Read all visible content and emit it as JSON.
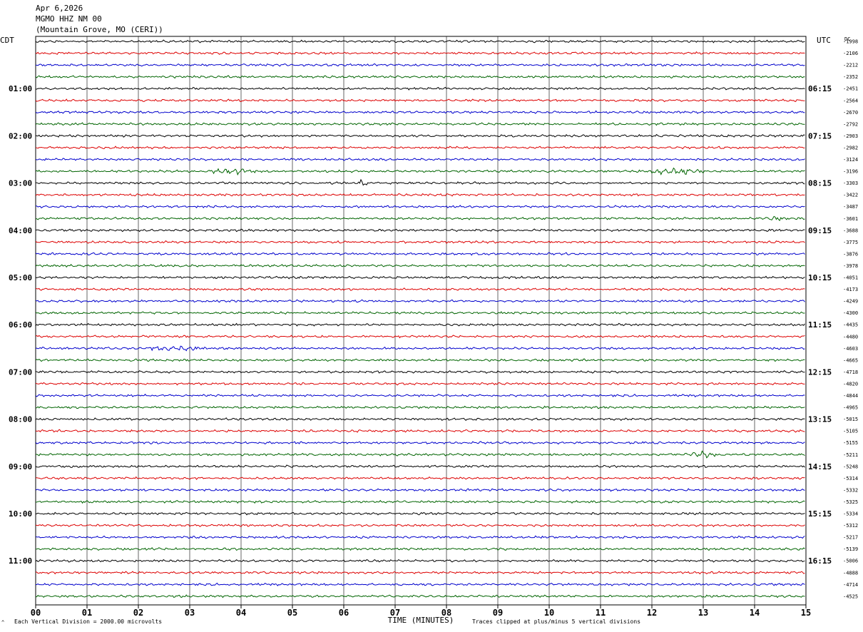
{
  "header": {
    "date": "Apr 6,2026",
    "station": "MGMO HHZ NM 00",
    "location": "(Mountain Grove, MO (CERI))"
  },
  "chart_data": {
    "type": "line",
    "title": "",
    "xlabel": "TIME (MINUTES)",
    "ylabel": "",
    "left_timezone": "CDT",
    "right_timezone": "UTC",
    "dc_header": "DC",
    "xlim": [
      0,
      15
    ],
    "x_ticks": [
      "00",
      "01",
      "02",
      "03",
      "04",
      "05",
      "06",
      "07",
      "08",
      "09",
      "10",
      "11",
      "12",
      "13",
      "14",
      "15"
    ],
    "left_hour_labels": [
      "01:00",
      "02:00",
      "03:00",
      "04:00",
      "05:00",
      "06:00",
      "07:00",
      "08:00",
      "09:00",
      "10:00",
      "11:00"
    ],
    "right_hour_labels": [
      "06:15",
      "07:15",
      "08:15",
      "09:15",
      "10:15",
      "11:15",
      "12:15",
      "13:15",
      "14:15",
      "15:15",
      "16:15"
    ],
    "first_labeled_trace_index": 4,
    "traces_per_hour": 4,
    "trace_colors": [
      "#000000",
      "#dd0000",
      "#0000cc",
      "#006400"
    ],
    "dc_offsets": [
      "-1998",
      "-2106",
      "-2212",
      "-2352",
      "-2451",
      "-2564",
      "-2670",
      "-2792",
      "-2903",
      "-2982",
      "-3124",
      "-3196",
      "-3303",
      "-3422",
      "-3487",
      "-3601",
      "-3688",
      "-3775",
      "-3876",
      "-3978",
      "-4051",
      "-4173",
      "-4249",
      "-4300",
      "-4435",
      "-4480",
      "-4603",
      "-4665",
      "-4718",
      "-4820",
      "-4844",
      "-4965",
      "-5015",
      "-5105",
      "-5155",
      "-5211",
      "-5248",
      "-5314",
      "-5332",
      "-5325",
      "-5334",
      "-5312",
      "-5217",
      "-5139",
      "-5006",
      "-4888",
      "-4714",
      "-4525"
    ],
    "events": [
      {
        "trace": 11,
        "start_min": 3.3,
        "end_min": 4.3,
        "amplitude": 2.5
      },
      {
        "trace": 11,
        "start_min": 11.7,
        "end_min": 13.1,
        "amplitude": 2.8
      },
      {
        "trace": 12,
        "start_min": 6.2,
        "end_min": 6.5,
        "amplitude": 2.2
      },
      {
        "trace": 26,
        "start_min": 2.0,
        "end_min": 3.4,
        "amplitude": 2.0
      },
      {
        "trace": 35,
        "start_min": 12.6,
        "end_min": 13.3,
        "amplitude": 3.2
      },
      {
        "trace": 15,
        "start_min": 14.0,
        "end_min": 14.6,
        "amplitude": 1.8
      }
    ]
  },
  "footer": {
    "scale_note": "Each Vertical Division = 2000.00 microvolts",
    "clip_note": "Traces clipped at plus/minus 5 vertical divisions",
    "corner_mark": "^"
  }
}
